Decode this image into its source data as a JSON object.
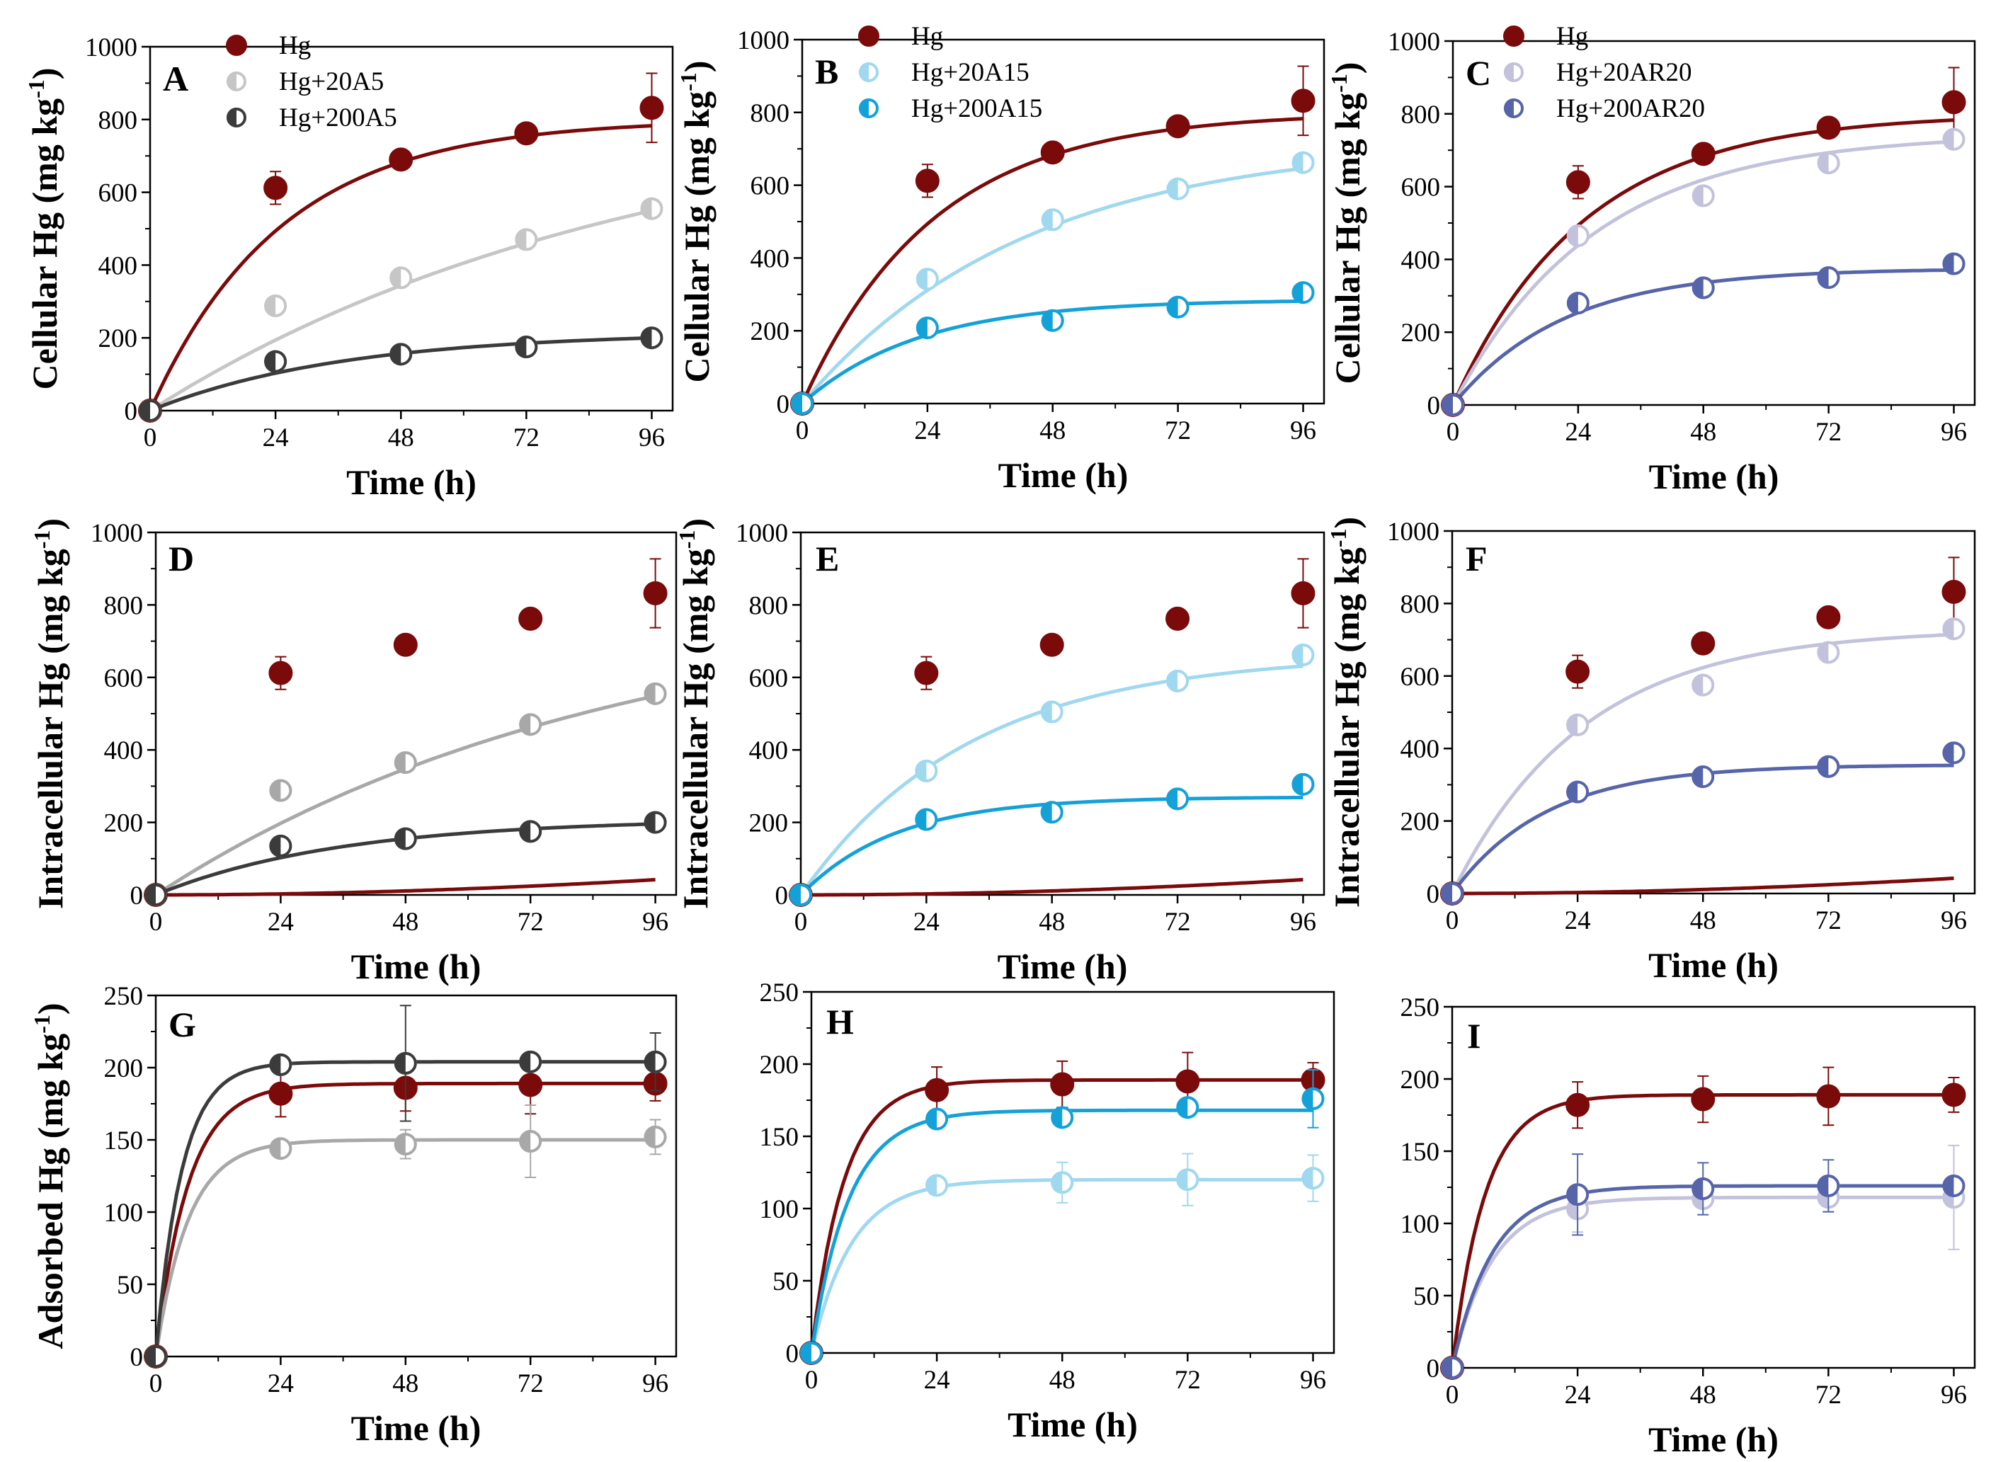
{
  "figure": "Mercury accumulation kinetics, panels A-I",
  "colors": {
    "Hg": "#7b0a0a",
    "A5_low": "#c6c6c6",
    "A5_high": "#3b3b3b",
    "A15_low": "#9fd8ef",
    "A15_high": "#14a1d8",
    "AR20_low": "#c2c2dc",
    "AR20_high": "#5664a9",
    "G_low": "#a8a8a8"
  },
  "chart_data": [
    {
      "id": "A",
      "letter": "A",
      "type": "scatter",
      "title": "",
      "xlabel": "Time (h)",
      "ylabel_main": "Cellular Hg (mg kg",
      "ylabel_sup": "-1",
      "ylabel_tail": ")",
      "xlim": [
        0,
        100
      ],
      "ylim": [
        0,
        1000
      ],
      "xticks": [
        0,
        24,
        48,
        72,
        96
      ],
      "yticks": [
        0,
        200,
        400,
        600,
        800,
        1000
      ],
      "legend": true,
      "series": [
        {
          "name": "Hg",
          "color_key": "Hg",
          "marker": "filled",
          "x": [
            0,
            24,
            48,
            72,
            96
          ],
          "y": [
            0,
            612,
            690,
            762,
            832
          ],
          "err": [
            0,
            45,
            0,
            0,
            95
          ],
          "fit": {
            "model": "exp",
            "ymax": 800,
            "k": 0.04
          }
        },
        {
          "name": "Hg+20A5",
          "color_key": "A5_low",
          "marker": "half",
          "x": [
            0,
            24,
            48,
            72,
            96
          ],
          "y": [
            0,
            288,
            365,
            470,
            555
          ],
          "err": [
            0,
            0,
            0,
            0,
            0
          ],
          "fit": {
            "model": "exp",
            "ymax": 856,
            "k": 0.0107
          }
        },
        {
          "name": "Hg+200A5",
          "color_key": "A5_high",
          "marker": "half",
          "x": [
            0,
            24,
            48,
            72,
            96
          ],
          "y": [
            0,
            135,
            155,
            175,
            200
          ],
          "err": [
            0,
            0,
            0,
            0,
            0
          ],
          "fit": {
            "model": "exp",
            "ymax": 216,
            "k": 0.027
          }
        }
      ]
    },
    {
      "id": "B",
      "letter": "B",
      "type": "scatter",
      "title": "",
      "xlabel": "Time (h)",
      "ylabel_main": "Cellular Hg (mg kg",
      "ylabel_sup": "-1",
      "ylabel_tail": ")",
      "xlim": [
        0,
        100
      ],
      "ylim": [
        0,
        1000
      ],
      "xticks": [
        0,
        24,
        48,
        72,
        96
      ],
      "yticks": [
        0,
        200,
        400,
        600,
        800,
        1000
      ],
      "legend": true,
      "series": [
        {
          "name": "Hg",
          "color_key": "Hg",
          "marker": "filled",
          "x": [
            0,
            24,
            48,
            72,
            96
          ],
          "y": [
            0,
            612,
            690,
            762,
            832
          ],
          "err": [
            0,
            45,
            0,
            0,
            95
          ],
          "fit": {
            "model": "exp",
            "ymax": 800,
            "k": 0.04
          }
        },
        {
          "name": "Hg+20A15",
          "color_key": "A15_low",
          "marker": "half",
          "x": [
            0,
            24,
            48,
            72,
            96
          ],
          "y": [
            0,
            342,
            505,
            590,
            662
          ],
          "err": [
            0,
            0,
            0,
            0,
            0
          ],
          "fit": {
            "model": "exp",
            "ymax": 722,
            "k": 0.0235
          }
        },
        {
          "name": "Hg+200A15",
          "color_key": "A15_high",
          "marker": "half",
          "x": [
            0,
            24,
            48,
            72,
            96
          ],
          "y": [
            0,
            208,
            228,
            265,
            305
          ],
          "err": [
            0,
            0,
            0,
            0,
            0
          ],
          "fit": {
            "model": "exp",
            "ymax": 285,
            "k": 0.045
          }
        }
      ]
    },
    {
      "id": "C",
      "letter": "C",
      "type": "scatter",
      "title": "",
      "xlabel": "Time (h)",
      "ylabel_main": "Cellular Hg (mg kg",
      "ylabel_sup": "-1",
      "ylabel_tail": ")",
      "xlim": [
        0,
        100
      ],
      "ylim": [
        0,
        1000
      ],
      "xticks": [
        0,
        24,
        48,
        72,
        96
      ],
      "yticks": [
        0,
        200,
        400,
        600,
        800,
        1000
      ],
      "legend": true,
      "series": [
        {
          "name": "Hg",
          "color_key": "Hg",
          "marker": "filled",
          "x": [
            0,
            24,
            48,
            72,
            96
          ],
          "y": [
            0,
            612,
            690,
            762,
            832
          ],
          "err": [
            0,
            45,
            0,
            0,
            95
          ],
          "fit": {
            "model": "exp",
            "ymax": 800,
            "k": 0.04
          }
        },
        {
          "name": "Hg+20AR20",
          "color_key": "AR20_low",
          "marker": "half",
          "x": [
            0,
            24,
            48,
            72,
            96
          ],
          "y": [
            0,
            465,
            575,
            665,
            730
          ],
          "err": [
            0,
            0,
            0,
            0,
            0
          ],
          "fit": {
            "model": "exp",
            "ymax": 745,
            "k": 0.037
          }
        },
        {
          "name": "Hg+200AR20",
          "color_key": "AR20_high",
          "marker": "half",
          "x": [
            0,
            24,
            48,
            72,
            96
          ],
          "y": [
            0,
            280,
            322,
            350,
            388
          ],
          "err": [
            0,
            0,
            0,
            0,
            0
          ],
          "fit": {
            "model": "exp",
            "ymax": 375,
            "k": 0.047
          }
        }
      ]
    },
    {
      "id": "D",
      "letter": "D",
      "type": "scatter",
      "title": "",
      "xlabel": "Time (h)",
      "ylabel_main": "Intracellular Hg (mg kg",
      "ylabel_sup": "-1",
      "ylabel_tail": ")",
      "xlim": [
        0,
        100
      ],
      "ylim": [
        0,
        1000
      ],
      "xticks": [
        0,
        24,
        48,
        72,
        96
      ],
      "yticks": [
        0,
        200,
        400,
        600,
        800,
        1000
      ],
      "legend": false,
      "series": [
        {
          "name": "Hg",
          "color_key": "Hg",
          "marker": "filled",
          "x": [
            0,
            24,
            48,
            72,
            96
          ],
          "y": [
            0,
            612,
            690,
            762,
            832
          ],
          "err": [
            0,
            45,
            0,
            0,
            95
          ],
          "fit": {
            "model": "hill",
            "ymax": 770,
            "k": 0.0025,
            "n": 2
          }
        },
        {
          "name": "Hg+20A5",
          "color_key": "G_low",
          "marker": "half",
          "x": [
            0,
            24,
            48,
            72,
            96
          ],
          "y": [
            0,
            288,
            365,
            470,
            555
          ],
          "err": [
            0,
            0,
            0,
            0,
            0
          ],
          "fit": {
            "model": "exp",
            "ymax": 825,
            "k": 0.0114
          }
        },
        {
          "name": "Hg+200A5",
          "color_key": "A5_high",
          "marker": "half",
          "x": [
            0,
            24,
            48,
            72,
            96
          ],
          "y": [
            0,
            135,
            155,
            175,
            200
          ],
          "err": [
            0,
            0,
            0,
            0,
            0
          ],
          "fit": {
            "model": "exp",
            "ymax": 210,
            "k": 0.028
          }
        }
      ]
    },
    {
      "id": "E",
      "letter": "E",
      "type": "scatter",
      "title": "",
      "xlabel": "Time (h)",
      "ylabel_main": "Intracellular Hg (mg kg",
      "ylabel_sup": "-1",
      "ylabel_tail": ")",
      "xlim": [
        0,
        100
      ],
      "ylim": [
        0,
        1000
      ],
      "xticks": [
        0,
        24,
        48,
        72,
        96
      ],
      "yticks": [
        0,
        200,
        400,
        600,
        800,
        1000
      ],
      "legend": false,
      "series": [
        {
          "name": "Hg",
          "color_key": "Hg",
          "marker": "filled",
          "x": [
            0,
            24,
            48,
            72,
            96
          ],
          "y": [
            0,
            612,
            690,
            762,
            832
          ],
          "err": [
            0,
            45,
            0,
            0,
            95
          ],
          "fit": {
            "model": "hill",
            "ymax": 770,
            "k": 0.0025,
            "n": 2
          }
        },
        {
          "name": "Hg+20A15",
          "color_key": "A15_low",
          "marker": "half",
          "x": [
            0,
            24,
            48,
            72,
            96
          ],
          "y": [
            0,
            342,
            505,
            590,
            662
          ],
          "err": [
            0,
            0,
            0,
            0,
            0
          ],
          "fit": {
            "model": "exp",
            "ymax": 665,
            "k": 0.031
          }
        },
        {
          "name": "Hg+200A15",
          "color_key": "A15_high",
          "marker": "half",
          "x": [
            0,
            24,
            48,
            72,
            96
          ],
          "y": [
            0,
            208,
            228,
            265,
            305
          ],
          "err": [
            0,
            0,
            0,
            0,
            0
          ],
          "fit": {
            "model": "exp",
            "ymax": 270,
            "k": 0.055
          }
        }
      ]
    },
    {
      "id": "F",
      "letter": "F",
      "type": "scatter",
      "title": "",
      "xlabel": "Time (h)",
      "ylabel_main": "Intracellular Hg (mg kg",
      "ylabel_sup": "-1",
      "ylabel_tail": ")",
      "xlim": [
        0,
        100
      ],
      "ylim": [
        0,
        1000
      ],
      "xticks": [
        0,
        24,
        48,
        72,
        96
      ],
      "yticks": [
        0,
        200,
        400,
        600,
        800,
        1000
      ],
      "legend": false,
      "series": [
        {
          "name": "Hg",
          "color_key": "Hg",
          "marker": "filled",
          "x": [
            0,
            24,
            48,
            72,
            96
          ],
          "y": [
            0,
            612,
            690,
            762,
            832
          ],
          "err": [
            0,
            45,
            0,
            0,
            95
          ],
          "fit": {
            "model": "hill",
            "ymax": 770,
            "k": 0.0025,
            "n": 2
          }
        },
        {
          "name": "Hg+20AR20",
          "color_key": "AR20_low",
          "marker": "half",
          "x": [
            0,
            24,
            48,
            72,
            96
          ],
          "y": [
            0,
            465,
            575,
            665,
            730
          ],
          "err": [
            0,
            0,
            0,
            0,
            0
          ],
          "fit": {
            "model": "exp",
            "ymax": 730,
            "k": 0.04
          }
        },
        {
          "name": "Hg+200AR20",
          "color_key": "AR20_high",
          "marker": "half",
          "x": [
            0,
            24,
            48,
            72,
            96
          ],
          "y": [
            0,
            280,
            322,
            350,
            388
          ],
          "err": [
            0,
            0,
            0,
            0,
            0
          ],
          "fit": {
            "model": "exp",
            "ymax": 355,
            "k": 0.056
          }
        }
      ]
    },
    {
      "id": "G",
      "letter": "G",
      "type": "scatter",
      "title": "",
      "xlabel": "Time (h)",
      "ylabel_main": "Adsorbed Hg  (mg kg",
      "ylabel_sup": "-1",
      "ylabel_tail": ")",
      "xlim": [
        0,
        100
      ],
      "ylim": [
        0,
        250
      ],
      "xticks": [
        0,
        24,
        48,
        72,
        96
      ],
      "yticks": [
        0,
        50,
        100,
        150,
        200,
        250
      ],
      "legend": false,
      "series": [
        {
          "name": "Hg",
          "color_key": "Hg",
          "marker": "filled",
          "x": [
            0,
            24,
            48,
            72,
            96
          ],
          "y": [
            0,
            182,
            186,
            188,
            189
          ],
          "err": [
            0,
            16,
            16,
            20,
            12
          ],
          "fit": {
            "model": "exp",
            "ymax": 189,
            "k": 0.16
          }
        },
        {
          "name": "Hg+20A5",
          "color_key": "G_low",
          "marker": "half",
          "x": [
            0,
            24,
            48,
            72,
            96
          ],
          "y": [
            0,
            144,
            147,
            149,
            152
          ],
          "err": [
            0,
            0,
            10,
            25,
            12
          ],
          "fit": {
            "model": "exp",
            "ymax": 150,
            "k": 0.16
          }
        },
        {
          "name": "Hg+200A5",
          "color_key": "A5_high",
          "marker": "half",
          "x": [
            0,
            24,
            48,
            72,
            96
          ],
          "y": [
            0,
            202,
            203,
            204,
            204
          ],
          "err": [
            0,
            0,
            40,
            0,
            20
          ],
          "fit": {
            "model": "exp",
            "ymax": 204,
            "k": 0.2
          }
        }
      ]
    },
    {
      "id": "H",
      "letter": "H",
      "type": "scatter",
      "title": "",
      "xlabel": "Time (h)",
      "ylabel_main": "",
      "ylabel_sup": "",
      "ylabel_tail": "",
      "xlim": [
        0,
        100
      ],
      "ylim": [
        0,
        250
      ],
      "xticks": [
        0,
        24,
        48,
        72,
        96
      ],
      "yticks": [
        0,
        50,
        100,
        150,
        200,
        250
      ],
      "legend": false,
      "series": [
        {
          "name": "Hg",
          "color_key": "Hg",
          "marker": "filled",
          "x": [
            0,
            24,
            48,
            72,
            96
          ],
          "y": [
            0,
            182,
            186,
            188,
            189
          ],
          "err": [
            0,
            16,
            16,
            20,
            12
          ],
          "fit": {
            "model": "exp",
            "ymax": 189,
            "k": 0.16
          }
        },
        {
          "name": "Hg+20A15",
          "color_key": "A15_low",
          "marker": "half",
          "x": [
            0,
            24,
            48,
            72,
            96
          ],
          "y": [
            0,
            116,
            118,
            120,
            121
          ],
          "err": [
            0,
            0,
            14,
            18,
            16
          ],
          "fit": {
            "model": "exp",
            "ymax": 120,
            "k": 0.13
          }
        },
        {
          "name": "Hg+200A15",
          "color_key": "A15_high",
          "marker": "half",
          "x": [
            0,
            24,
            48,
            72,
            96
          ],
          "y": [
            0,
            162,
            163,
            170,
            176
          ],
          "err": [
            0,
            0,
            0,
            0,
            20
          ],
          "fit": {
            "model": "exp",
            "ymax": 168,
            "k": 0.14
          }
        }
      ]
    },
    {
      "id": "I",
      "letter": "I",
      "type": "scatter",
      "title": "",
      "xlabel": "Time (h)",
      "ylabel_main": "",
      "ylabel_sup": "",
      "ylabel_tail": "",
      "xlim": [
        0,
        100
      ],
      "ylim": [
        0,
        250
      ],
      "xticks": [
        0,
        24,
        48,
        72,
        96
      ],
      "yticks": [
        0,
        50,
        100,
        150,
        200,
        250
      ],
      "legend": false,
      "series": [
        {
          "name": "Hg",
          "color_key": "Hg",
          "marker": "filled",
          "x": [
            0,
            24,
            48,
            72,
            96
          ],
          "y": [
            0,
            182,
            186,
            188,
            189
          ],
          "err": [
            0,
            16,
            16,
            20,
            12
          ],
          "fit": {
            "model": "exp",
            "ymax": 189,
            "k": 0.16
          }
        },
        {
          "name": "Hg+20AR20",
          "color_key": "AR20_low",
          "marker": "half",
          "x": [
            0,
            24,
            48,
            72,
            96
          ],
          "y": [
            0,
            110,
            117,
            118,
            118
          ],
          "err": [
            0,
            16,
            0,
            10,
            36
          ],
          "fit": {
            "model": "exp",
            "ymax": 118,
            "k": 0.13
          }
        },
        {
          "name": "Hg+200AR20",
          "color_key": "AR20_high",
          "marker": "half",
          "x": [
            0,
            24,
            48,
            72,
            96
          ],
          "y": [
            0,
            120,
            124,
            126,
            126
          ],
          "err": [
            0,
            28,
            18,
            18,
            0
          ],
          "fit": {
            "model": "exp",
            "ymax": 126,
            "k": 0.13
          }
        }
      ]
    }
  ]
}
